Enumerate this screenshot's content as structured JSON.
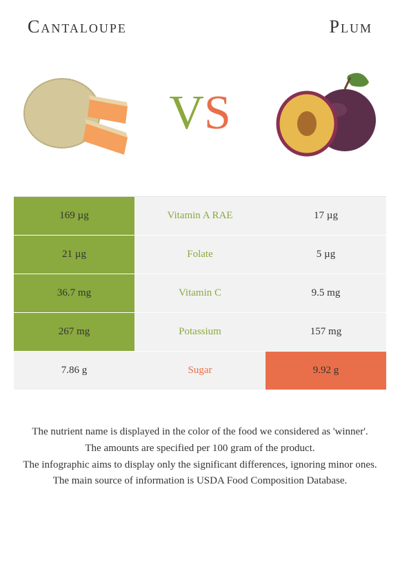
{
  "header": {
    "left_title": "Cantaloupe",
    "right_title": "Plum"
  },
  "vs": {
    "v": "V",
    "s": "S"
  },
  "colors": {
    "left_winner_bg": "#8aa93e",
    "right_winner_bg": "#e86f4a",
    "left_label_text": "#8aa93e",
    "right_label_text": "#e86f4a",
    "neutral_bg": "#f2f2f2",
    "row_border": "#fefefe",
    "cantaloupe_rind": "#d4c89a",
    "cantaloupe_flesh": "#f5a05c",
    "plum_skin": "#5b2f4a",
    "plum_flesh": "#e8b94e",
    "plum_leaf": "#5a8a3a"
  },
  "rows": [
    {
      "label": "Vitamin A RAE",
      "left": "169 µg",
      "right": "17 µg",
      "winner": "left"
    },
    {
      "label": "Folate",
      "left": "21 µg",
      "right": "5 µg",
      "winner": "left"
    },
    {
      "label": "Vitamin C",
      "left": "36.7 mg",
      "right": "9.5 mg",
      "winner": "left"
    },
    {
      "label": "Potassium",
      "left": "267 mg",
      "right": "157 mg",
      "winner": "left"
    },
    {
      "label": "Sugar",
      "left": "7.86 g",
      "right": "9.92 g",
      "winner": "right"
    }
  ],
  "footer": {
    "line1": "The nutrient name is displayed in the color of the food we considered as 'winner'.",
    "line2": "The amounts are specified per 100 gram of the product.",
    "line3": "The infographic aims to display only the significant differences, ignoring minor ones.",
    "line4": "The main source of information is USDA Food Composition Database."
  }
}
